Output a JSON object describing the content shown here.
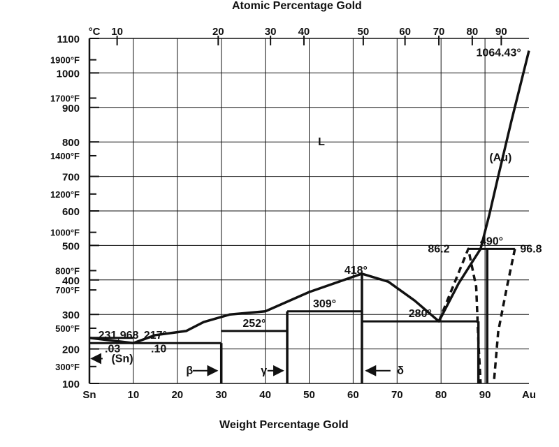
{
  "chart_data": {
    "type": "phase-diagram",
    "title": "",
    "top_axis": {
      "label": "Atomic Percentage Gold",
      "ticks": [
        {
          "label": "10",
          "wt": 6.3
        },
        {
          "label": "20",
          "wt": 29.3
        },
        {
          "label": "30",
          "wt": 41.2
        },
        {
          "label": "40",
          "wt": 48.8
        },
        {
          "label": "50",
          "wt": 62.3
        },
        {
          "label": "60",
          "wt": 71.8
        },
        {
          "label": "70",
          "wt": 79.5
        },
        {
          "label": "80",
          "wt": 87.1
        },
        {
          "label": "90",
          "wt": 93.7
        }
      ]
    },
    "x_axis": {
      "label": "Weight Percentage Gold",
      "xlim": [
        0,
        100
      ],
      "ticks": [
        {
          "label": "Sn",
          "v": 0
        },
        {
          "label": "10",
          "v": 10
        },
        {
          "label": "20",
          "v": 20
        },
        {
          "label": "30",
          "v": 30
        },
        {
          "label": "40",
          "v": 40
        },
        {
          "label": "50",
          "v": 50
        },
        {
          "label": "60",
          "v": 60
        },
        {
          "label": "70",
          "v": 70
        },
        {
          "label": "80",
          "v": 80
        },
        {
          "label": "90",
          "v": 90
        },
        {
          "label": "Au",
          "v": 100
        }
      ]
    },
    "y_axis": {
      "unit_label": "°C",
      "ylim": [
        100,
        1100
      ],
      "celsius_ticks": [
        {
          "label": "100",
          "v": 100
        },
        {
          "label": "200",
          "v": 200
        },
        {
          "label": "300",
          "v": 300
        },
        {
          "label": "400",
          "v": 400
        },
        {
          "label": "500",
          "v": 500
        },
        {
          "label": "600",
          "v": 600
        },
        {
          "label": "700",
          "v": 700
        },
        {
          "label": "800",
          "v": 800
        },
        {
          "label": "900",
          "v": 900
        },
        {
          "label": "1000",
          "v": 1000
        },
        {
          "label": "1100",
          "v": 1100
        }
      ],
      "fahrenheit_ticks": [
        {
          "label": "300°F",
          "v": 149
        },
        {
          "label": "500°F",
          "v": 260
        },
        {
          "label": "700°F",
          "v": 371
        },
        {
          "label": "800°F",
          "v": 427
        },
        {
          "label": "1000°F",
          "v": 538
        },
        {
          "label": "1200°F",
          "v": 649
        },
        {
          "label": "1400°F",
          "v": 760
        },
        {
          "label": "1700°F",
          "v": 927
        },
        {
          "label": "1900°F",
          "v": 1038
        }
      ]
    },
    "grid": true,
    "liquidus": [
      [
        0,
        231.968
      ],
      [
        10,
        217
      ],
      [
        15,
        240
      ],
      [
        22,
        252
      ],
      [
        26,
        278
      ],
      [
        32,
        300
      ],
      [
        40,
        309
      ],
      [
        50,
        365
      ],
      [
        62,
        418
      ],
      [
        68,
        395
      ],
      [
        74,
        340
      ],
      [
        79.5,
        280
      ],
      [
        84,
        390
      ],
      [
        87,
        450
      ],
      [
        89,
        490
      ],
      [
        91,
        590
      ],
      [
        93,
        700
      ],
      [
        96,
        860
      ],
      [
        100,
        1064.43
      ]
    ],
    "solidus": [
      [
        79.5,
        280
      ],
      [
        86.2,
        490
      ],
      [
        88,
        380
      ],
      [
        88.5,
        220
      ],
      [
        89,
        100
      ]
    ],
    "solvus": [
      [
        96.8,
        490
      ],
      [
        95,
        380
      ],
      [
        93,
        250
      ],
      [
        92,
        100
      ]
    ],
    "phase_boundaries": [
      {
        "name": "beta",
        "x": 30,
        "from": 100,
        "to": 217
      },
      {
        "name": "gamma",
        "x": 45,
        "from": 100,
        "to": 309
      },
      {
        "name": "delta",
        "x": 62,
        "from": 100,
        "to": 418
      },
      {
        "name": "zeta-left",
        "x": 88.5,
        "from": 100,
        "to": 280
      },
      {
        "name": "zeta-right",
        "x": 90.5,
        "from": 100,
        "to": 490
      }
    ],
    "isotherms": [
      {
        "label": "217°",
        "value": 217,
        "from": 0,
        "to": 30
      },
      {
        "label": "252°",
        "value": 252,
        "from": 30,
        "to": 45
      },
      {
        "label": "309°",
        "value": 309,
        "from": 45,
        "to": 62
      },
      {
        "label": "280°",
        "value": 280,
        "from": 62,
        "to": 88.5
      },
      {
        "label": "490°",
        "value": 490,
        "from": 86.2,
        "to": 96.8
      }
    ],
    "annotations": [
      {
        "text": "231,968",
        "x": 2,
        "y": 240
      },
      {
        "text": "1064.43°",
        "x": 88,
        "y": 1058
      },
      {
        "text": "L",
        "x": 52,
        "y": 800
      },
      {
        "text": "(Au)",
        "x": 91,
        "y": 755
      },
      {
        "text": "418°",
        "x": 58,
        "y": 428
      },
      {
        "text": "86.2",
        "x": 77,
        "y": 490
      },
      {
        "text": "96.8",
        "x": 98,
        "y": 490
      },
      {
        "text": ".03",
        "x": 3.5,
        "y": 200
      },
      {
        "text": ".10",
        "x": 14,
        "y": 200
      },
      {
        "text": "(Sn)",
        "x": 5,
        "y": 172
      },
      {
        "text": "β",
        "x": 22,
        "y": 137
      },
      {
        "text": "γ",
        "x": 39,
        "y": 137
      },
      {
        "text": "δ",
        "x": 70,
        "y": 137
      }
    ]
  }
}
